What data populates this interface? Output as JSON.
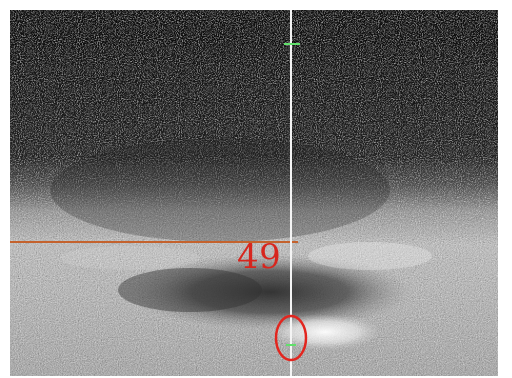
{
  "overlay": {
    "measurement_value": "49",
    "colors": {
      "reference_line": "#c4622d",
      "measurement_text": "#d7261e",
      "highlight_ellipse": "#e2261f",
      "cursor_line": "#f4f4f4",
      "marker": "#61e06b",
      "background_dark": "#171717",
      "background_light": "#d9d9d9"
    }
  }
}
